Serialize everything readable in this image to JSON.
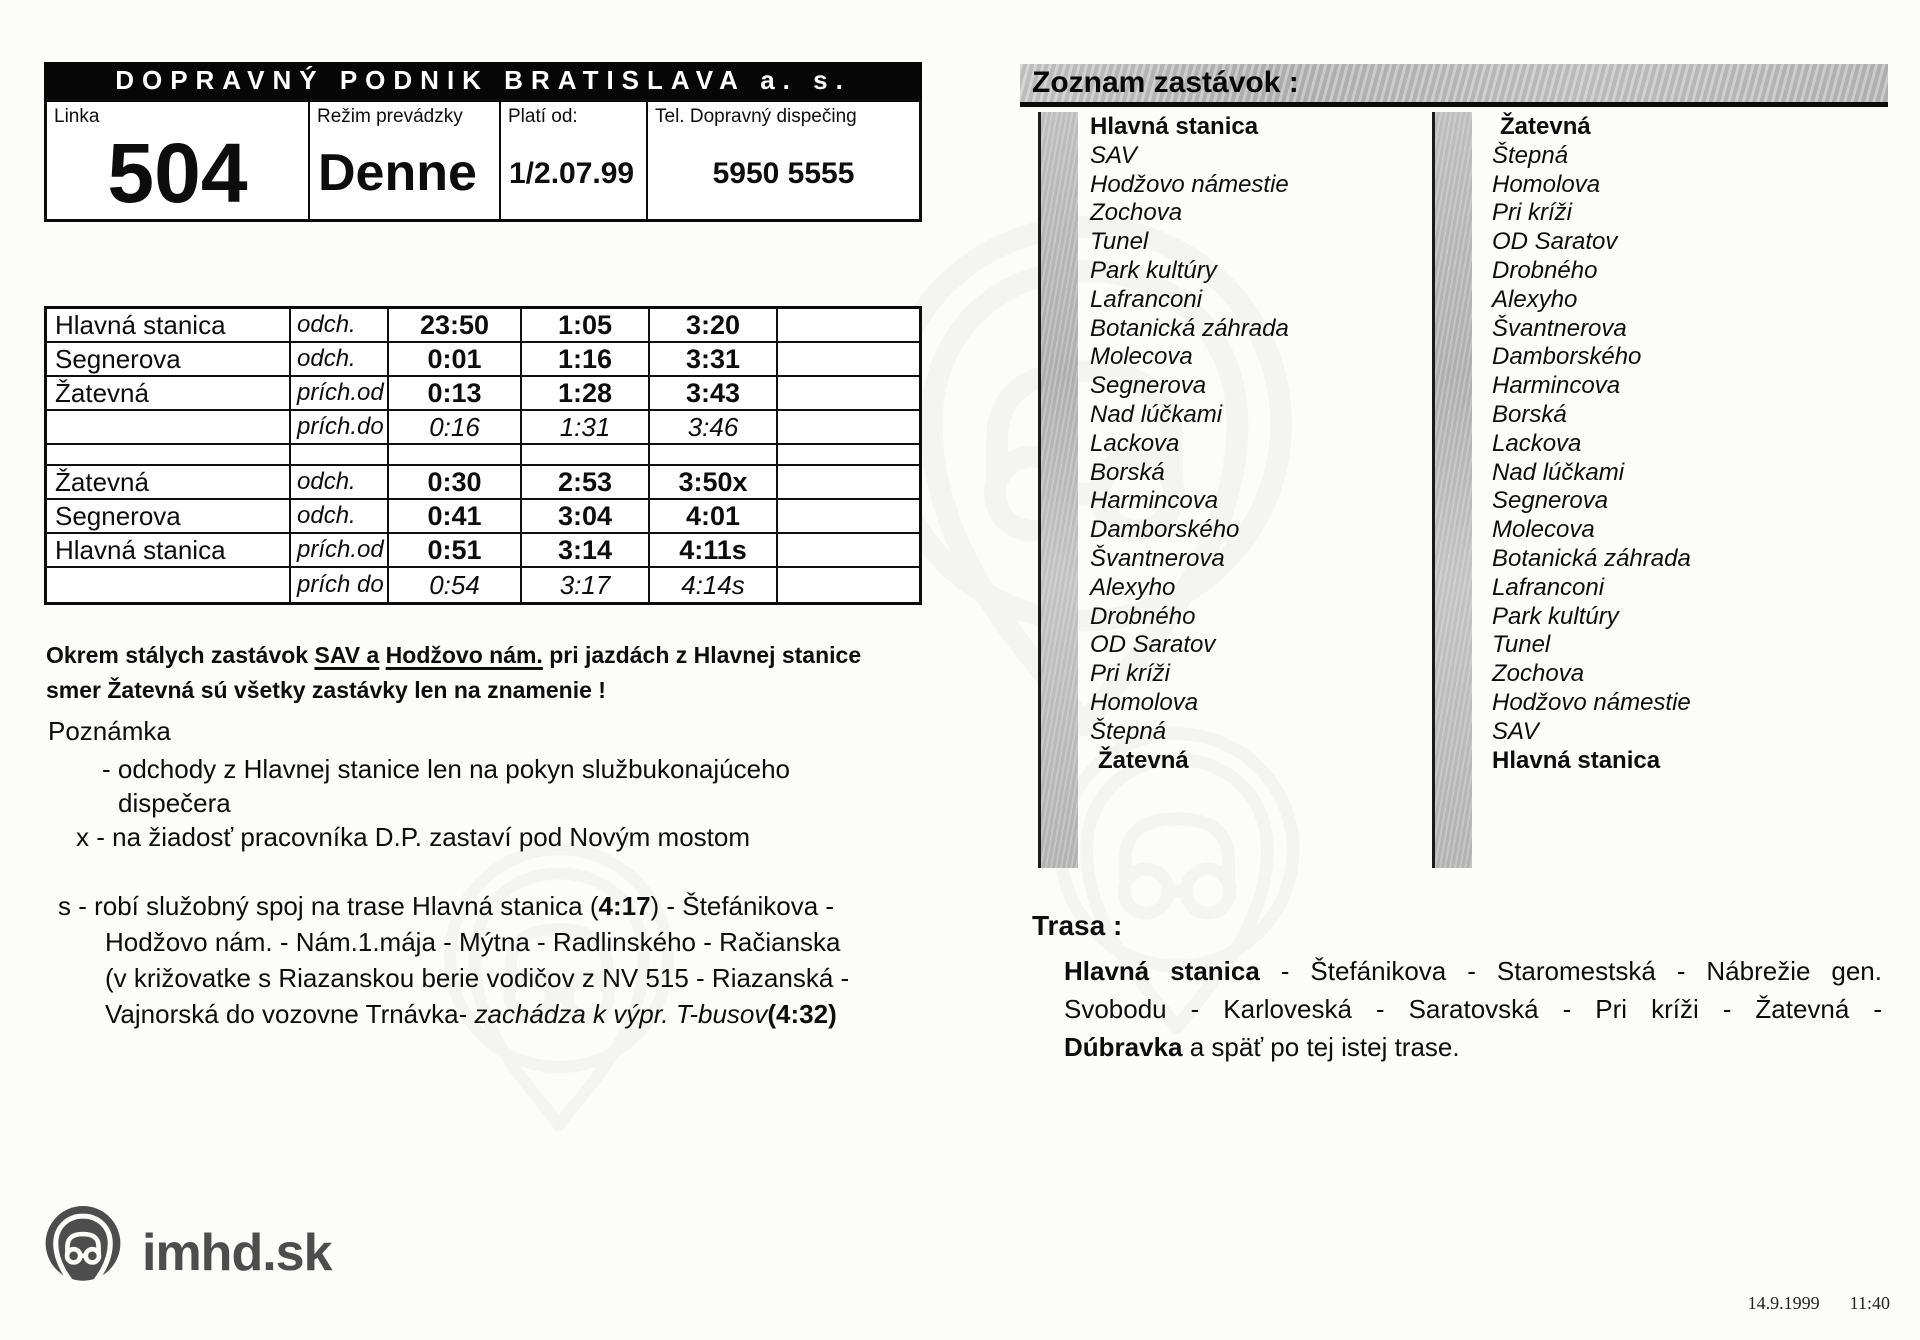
{
  "colors": {
    "ink": "#0d0d0d",
    "header_bg": "#060606",
    "bar_gray": "#b7b7b7",
    "logo_gray": "#4d4d4d",
    "paper": "#fcfcfb"
  },
  "header": {
    "company": "DOPRAVNÝ PODNIK BRATISLAVA a. s.",
    "fields": [
      {
        "label": "Linka",
        "value": "504"
      },
      {
        "label": "Režim prevádzky",
        "value": "Denne"
      },
      {
        "label": "Platí od:",
        "value": "1/2.07.99"
      },
      {
        "label": "Tel. Dopravný dispečing",
        "value": "5950 5555"
      }
    ]
  },
  "timetable": {
    "rows": [
      {
        "stop": "Hlavná stanica",
        "type": "odch.",
        "times": [
          "23:50",
          "1:05",
          "3:20",
          ""
        ],
        "style": "bold"
      },
      {
        "stop": "Segnerova",
        "type": "odch.",
        "times": [
          "0:01",
          "1:16",
          "3:31",
          ""
        ],
        "style": "bold"
      },
      {
        "stop": "Žatevná",
        "type": "prích.od",
        "times": [
          "0:13",
          "1:28",
          "3:43",
          ""
        ],
        "style": "bold"
      },
      {
        "stop": "",
        "type": "prích.do",
        "times": [
          "0:16",
          "1:31",
          "3:46",
          ""
        ],
        "style": "italic"
      },
      {
        "stop": "",
        "type": "",
        "times": [
          "",
          "",
          "",
          ""
        ],
        "style": "spacer"
      },
      {
        "stop": "Žatevná",
        "type": "odch.",
        "times": [
          "0:30",
          "2:53",
          "3:50x",
          ""
        ],
        "style": "bold"
      },
      {
        "stop": "Segnerova",
        "type": "odch.",
        "times": [
          "0:41",
          "3:04",
          "4:01",
          ""
        ],
        "style": "bold"
      },
      {
        "stop": "Hlavná stanica",
        "type": "prích.od",
        "times": [
          "0:51",
          "3:14",
          "4:11s",
          ""
        ],
        "style": "bold"
      },
      {
        "stop": "",
        "type": "prích do",
        "times": [
          "0:54",
          "3:17",
          "4:14s",
          ""
        ],
        "style": "italic"
      }
    ]
  },
  "sign_note": {
    "segments": [
      {
        "t": "Okrem stálych zastávok  "
      },
      {
        "t": "SAV a",
        "u": true
      },
      {
        "t": " "
      },
      {
        "t": "Hodžovo nám.",
        "u": true
      },
      {
        "t": " pri jazdách z Hlavnej stanice"
      },
      {
        "br": true
      },
      {
        "t": "smer Žatevná  sú všetky zastávky len na znamenie !"
      }
    ]
  },
  "poznamka": {
    "title": "Poznámka",
    "lines": [
      "- odchody z Hlavnej stanice len na pokyn službukonajúceho",
      "dispečera",
      "x - na žiadosť pracovníka D.P. zastaví pod Novým mostom"
    ]
  },
  "s_note": {
    "lines": [
      [
        {
          "t": "s - robí služobný spoj na trase Hlavná stanica ("
        },
        {
          "t": "4:17",
          "b": true
        },
        {
          "t": ") - Štefánikova -"
        }
      ],
      [
        {
          "t": "Hodžovo nám. - Nám.1.mája - Mýtna - Radlinského - Račianska"
        }
      ],
      [
        {
          "t": "(v križovatke s Riazanskou berie vodičov z NV 515 - Riazanská -"
        }
      ],
      [
        {
          "t": "Vajnorská do vozovne Trnávka- "
        },
        {
          "t": "zachádza k výpr. T-busov",
          "i": true
        },
        {
          "t": "(4:32)",
          "b": true
        }
      ]
    ]
  },
  "stops": {
    "title": "Zoznam zastávok :",
    "left": [
      {
        "name": "Hlavná stanica",
        "endpoint": true
      },
      {
        "name": "SAV"
      },
      {
        "name": "Hodžovo námestie"
      },
      {
        "name": "Zochova"
      },
      {
        "name": "Tunel"
      },
      {
        "name": "Park kultúry"
      },
      {
        "name": "Lafranconi"
      },
      {
        "name": "Botanická záhrada"
      },
      {
        "name": "Molecova"
      },
      {
        "name": "Segnerova"
      },
      {
        "name": "Nad lúčkami"
      },
      {
        "name": "Lackova"
      },
      {
        "name": "Borská"
      },
      {
        "name": "Harmincova"
      },
      {
        "name": "Damborského"
      },
      {
        "name": "Švantnerova"
      },
      {
        "name": "Alexyho"
      },
      {
        "name": "Drobného"
      },
      {
        "name": "OD Saratov"
      },
      {
        "name": "Pri kríži"
      },
      {
        "name": "Homolova"
      },
      {
        "name": "Štepná"
      },
      {
        "name": "Žatevná",
        "endpoint": true,
        "ind": true
      }
    ],
    "right": [
      {
        "name": "Žatevná",
        "endpoint": true,
        "ind": true
      },
      {
        "name": "Štepná"
      },
      {
        "name": "Homolova"
      },
      {
        "name": "Pri kríži"
      },
      {
        "name": "OD Saratov"
      },
      {
        "name": "Drobného"
      },
      {
        "name": "Alexyho"
      },
      {
        "name": "Švantnerova"
      },
      {
        "name": "Damborského"
      },
      {
        "name": "Harmincova"
      },
      {
        "name": "Borská"
      },
      {
        "name": "Lackova"
      },
      {
        "name": "Nad lúčkami"
      },
      {
        "name": "Segnerova"
      },
      {
        "name": "Molecova"
      },
      {
        "name": "Botanická záhrada"
      },
      {
        "name": "Lafranconi"
      },
      {
        "name": "Park kultúry"
      },
      {
        "name": "Tunel"
      },
      {
        "name": "Zochova"
      },
      {
        "name": "Hodžovo námestie"
      },
      {
        "name": "SAV"
      },
      {
        "name": "Hlavná stanica",
        "endpoint": true
      }
    ]
  },
  "trasa": {
    "title": "Trasa :",
    "lines": [
      [
        {
          "t": "Hlavná stanica",
          "b": true
        },
        {
          "t": " - Štefánikova - Staromestská - Nábrežie gen."
        }
      ],
      [
        {
          "t": "Svobodu - Karloveská - Saratovská - Pri kríži - Žatevná -"
        }
      ],
      [
        {
          "t": "Dúbravka",
          "b": true
        },
        {
          "t": " a späť po tej istej trase."
        }
      ]
    ]
  },
  "footer": {
    "logo_icon": "bus-location-pin-icon",
    "logo_text": "imhd.sk",
    "date": "14.9.1999",
    "time": "11:40"
  }
}
